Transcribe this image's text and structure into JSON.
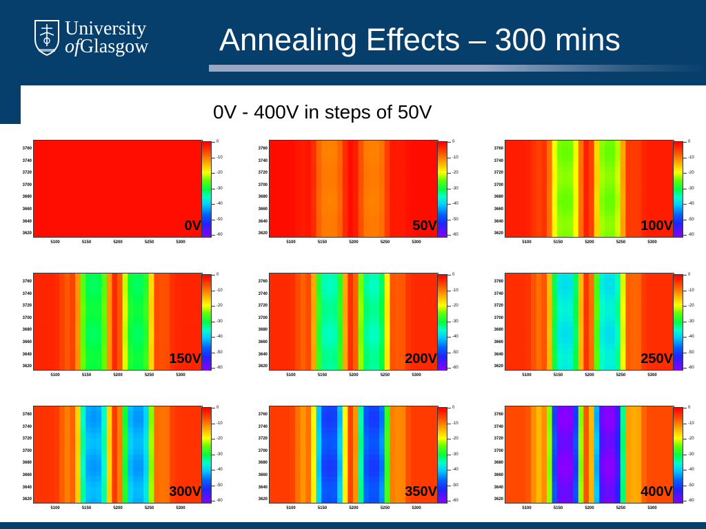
{
  "header": {
    "logo": {
      "line1": "University",
      "line2_italic": "of",
      "line2_rest": "Glasgow",
      "icon": "university-crest-icon"
    },
    "title": "Annealing Effects – 300 mins",
    "colors": {
      "header_bg": "#063f6b",
      "rule": "#9aa8c4"
    }
  },
  "subtitle": "0V - 400V in steps of 50V",
  "axes": {
    "y_ticks": [
      "3760",
      "3740",
      "3720",
      "3700",
      "3680",
      "3660",
      "3640",
      "3620"
    ],
    "x_ticks": [
      "5100",
      "5150",
      "5200",
      "5250",
      "5300"
    ],
    "colorbar_ticks": [
      "0",
      "-10",
      "-20",
      "-30",
      "-40",
      "-50",
      "-60"
    ]
  },
  "panels": [
    {
      "label": "0V",
      "level": 0.0
    },
    {
      "label": "50V",
      "level": 0.15
    },
    {
      "label": "100V",
      "level": 0.35
    },
    {
      "label": "150V",
      "level": 0.45
    },
    {
      "label": "200V",
      "level": 0.5
    },
    {
      "label": "250V",
      "level": 0.55
    },
    {
      "label": "300V",
      "level": 0.62
    },
    {
      "label": "350V",
      "level": 0.72
    },
    {
      "label": "400V",
      "level": 0.88
    }
  ]
}
